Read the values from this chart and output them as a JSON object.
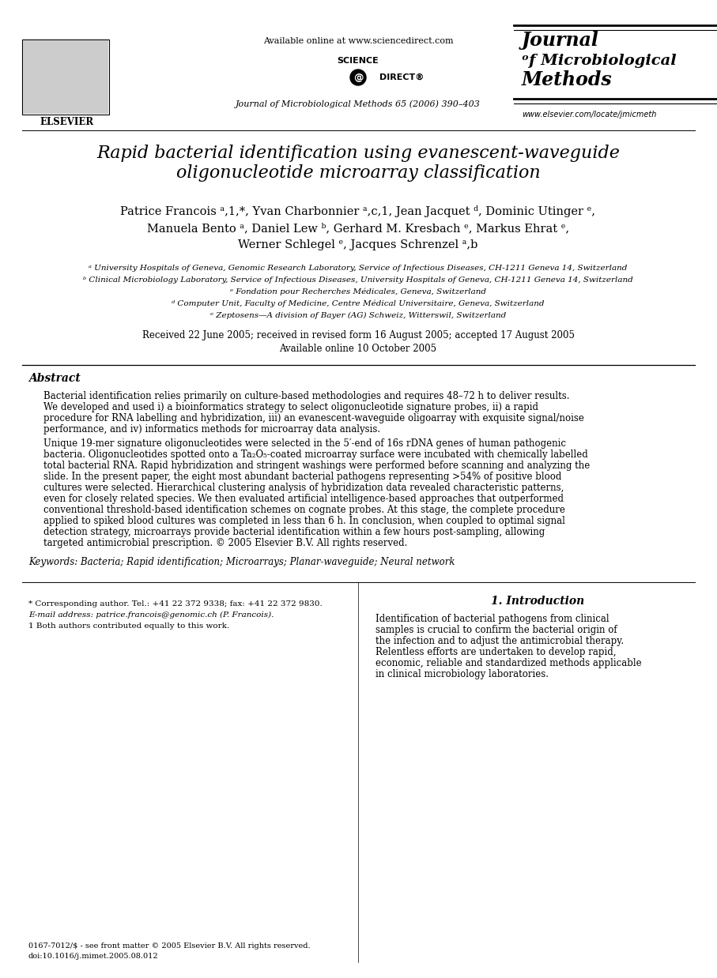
{
  "bg_color": "#ffffff",
  "title_line1": "Rapid bacterial identification using evanescent-waveguide",
  "title_line2": "oligonucleotide microarray classification",
  "authors_line1": "Patrice Francois ᵃ,1,*, Yvan Charbonnier ᵃ,c,1, Jean Jacquet ᵈ, Dominic Utinger ᵉ,",
  "authors_line2": "Manuela Bento ᵃ, Daniel Lew ᵇ, Gerhard M. Kresbach ᵉ, Markus Ehrat ᵉ,",
  "authors_line3": "Werner Schlegel ᵉ, Jacques Schrenzel ᵃ,b",
  "affil1": "ᵃ University Hospitals of Geneva, Genomic Research Laboratory, Service of Infectious Diseases, CH-1211 Geneva 14, Switzerland",
  "affil2": "ᵇ Clinical Microbiology Laboratory, Service of Infectious Diseases, University Hospitals of Geneva, CH-1211 Geneva 14, Switzerland",
  "affil3": "ᵉ Fondation pour Recherches Médicales, Geneva, Switzerland",
  "affil4": "ᵈ Computer Unit, Faculty of Medicine, Centre Médical Universitaire, Geneva, Switzerland",
  "affil5": "ᵉ Zeptosens—A division of Bayer (AG) Schweiz, Witterswil, Switzerland",
  "received": "Received 22 June 2005; received in revised form 16 August 2005; accepted 17 August 2005",
  "available": "Available online 10 October 2005",
  "abstract_title": "Abstract",
  "abstract_p1": "Bacterial identification relies primarily on culture-based methodologies and requires 48–72 h to deliver results. We developed and used i) a bioinformatics strategy to select oligonucleotide signature probes, ii) a rapid procedure for RNA labelling and hybridization, iii) an evanescent-waveguide oligoarray with exquisite signal/noise performance, and iv) informatics methods for microarray data analysis.",
  "abstract_p2": "Unique 19-mer signature oligonucleotides were selected in the 5′-end of 16s rDNA genes of human pathogenic bacteria. Oligonucleotides spotted onto a Ta₂O₅-coated microarray surface were incubated with chemically labelled total bacterial RNA. Rapid hybridization and stringent washings were performed before scanning and analyzing the slide. In the present paper, the eight most abundant bacterial pathogens representing >54% of positive blood cultures were selected. Hierarchical clustering analysis of hybridization data revealed characteristic patterns, even for closely related species. We then evaluated artificial intelligence-based approaches that outperformed conventional threshold-based identification schemes on cognate probes. At this stage, the complete procedure applied to spiked blood cultures was completed in less than 6 h. In conclusion, when coupled to optimal signal detection strategy, microarrays provide bacterial identification within a few hours post-sampling, allowing targeted antimicrobial prescription. © 2005 Elsevier B.V. All rights reserved.",
  "keywords": "Keywords: Bacteria; Rapid identification; Microarrays; Planar-waveguide; Neural network",
  "header_center": "Available online at www.sciencedirect.com",
  "journal_line1": "Journal of Microbiological Methods 65 (2006) 390–403",
  "journal_name_line1": "Journal",
  "journal_name_line2": "ᵒf Microbiological",
  "journal_name_line3": "Methods",
  "journal_url": "www.elsevier.com/locate/jmicmeth",
  "elsevier_label": "ELSEVIER",
  "intro_heading": "1. Introduction",
  "intro_text": "Identification of bacterial pathogens from clinical samples is crucial to confirm the bacterial origin of the infection and to adjust the antimicrobial therapy. Relentless efforts are undertaken to develop rapid, economic, reliable and standardized methods applicable in clinical microbiology laboratories.",
  "footnote1": "* Corresponding author. Tel.: +41 22 372 9338; fax: +41 22 372 9830.",
  "footnote2": "E-mail address: patrice.francois@genomic.ch (P. Francois).",
  "footnote3": "1 Both authors contributed equally to this work.",
  "footnote4": "0167-7012/$ - see front matter © 2005 Elsevier B.V. All rights reserved.",
  "footnote5": "doi:10.1016/j.mimet.2005.08.012"
}
